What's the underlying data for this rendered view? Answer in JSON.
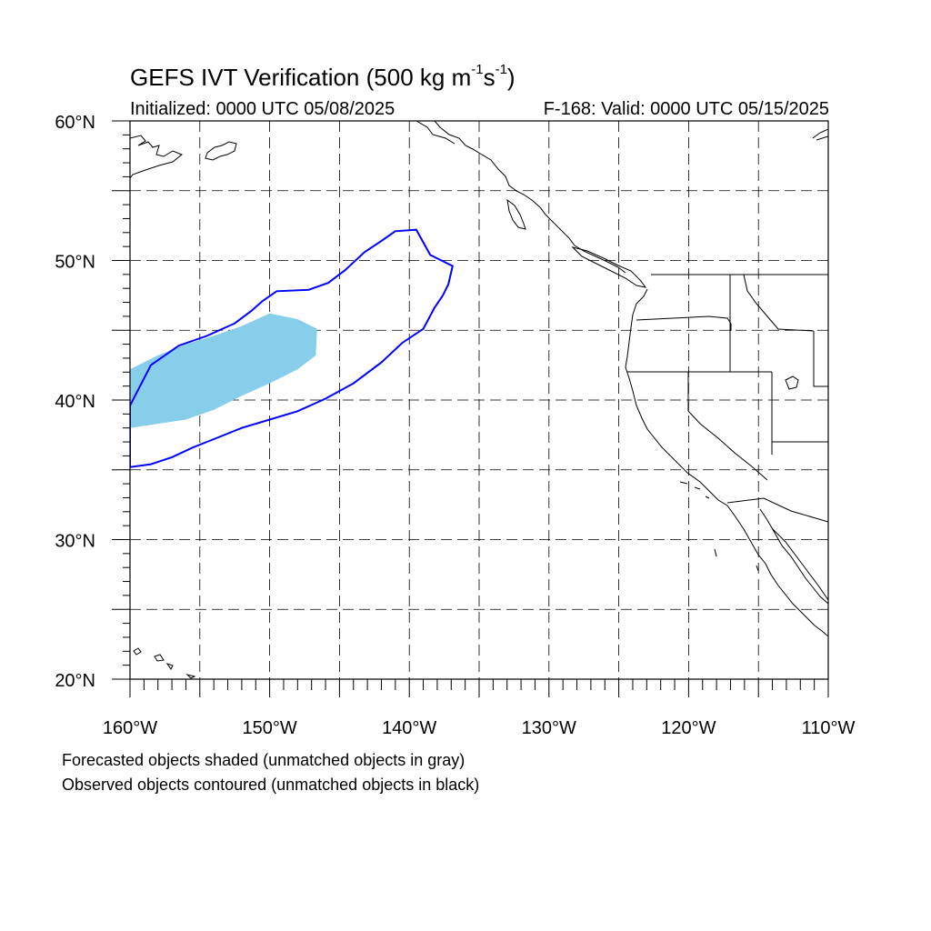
{
  "title": {
    "main": "GEFS IVT Verification (500 kg m",
    "sup1": "-1",
    "mid": "s",
    "sup2": "-1",
    "end": ")"
  },
  "subtitle": {
    "initialized": "Initialized: 0000 UTC 05/08/2025",
    "valid": "F-168: Valid: 0000 UTC 05/15/2025"
  },
  "axes": {
    "lon_range": [
      -160,
      -110
    ],
    "lat_range": [
      20,
      60
    ],
    "lon_ticks": [
      {
        "value": -160,
        "label": "160°W"
      },
      {
        "value": -150,
        "label": "150°W"
      },
      {
        "value": -140,
        "label": "140°W"
      },
      {
        "value": -130,
        "label": "130°W"
      },
      {
        "value": -120,
        "label": "120°W"
      },
      {
        "value": -110,
        "label": "110°W"
      }
    ],
    "lat_ticks": [
      {
        "value": 60,
        "label": "60°N"
      },
      {
        "value": 50,
        "label": "50°N"
      },
      {
        "value": 40,
        "label": "40°N"
      },
      {
        "value": 30,
        "label": "30°N"
      },
      {
        "value": 20,
        "label": "20°N"
      }
    ],
    "grid_lon": [
      -155,
      -150,
      -145,
      -140,
      -135,
      -130,
      -125,
      -120,
      -115
    ],
    "grid_lat": [
      55,
      50,
      45,
      40,
      35,
      30,
      25
    ]
  },
  "colors": {
    "forecast_fill": "#87ceeb",
    "observed_contour": "#0000ff",
    "coastline": "#000000",
    "grid": "#000000"
  },
  "forecast_object": [
    [
      -160,
      38
    ],
    [
      -158,
      38.3
    ],
    [
      -156,
      38.6
    ],
    [
      -154,
      39.3
    ],
    [
      -152,
      40.3
    ],
    [
      -150,
      41.2
    ],
    [
      -148,
      42.2
    ],
    [
      -146.7,
      43.2
    ],
    [
      -146.6,
      45.1
    ],
    [
      -148,
      45.8
    ],
    [
      -150,
      46.2
    ],
    [
      -152,
      45.3
    ],
    [
      -154,
      44.6
    ],
    [
      -156,
      44.0
    ],
    [
      -158,
      43.2
    ],
    [
      -160,
      42.2
    ]
  ],
  "observed_object": [
    [
      -160,
      35.2
    ],
    [
      -158.5,
      35.4
    ],
    [
      -157,
      35.9
    ],
    [
      -155.5,
      36.6
    ],
    [
      -154,
      37.2
    ],
    [
      -152,
      38.0
    ],
    [
      -150,
      38.6
    ],
    [
      -148,
      39.2
    ],
    [
      -146,
      40.1
    ],
    [
      -144,
      41.2
    ],
    [
      -142,
      42.7
    ],
    [
      -140.5,
      44.1
    ],
    [
      -139,
      45.1
    ],
    [
      -138.2,
      46.6
    ],
    [
      -137.6,
      47.5
    ],
    [
      -137.2,
      48.3
    ],
    [
      -136.9,
      49.6
    ],
    [
      -138.5,
      50.4
    ],
    [
      -139.5,
      52.2
    ],
    [
      -141,
      52.1
    ],
    [
      -142,
      51.4
    ],
    [
      -143.2,
      50.6
    ],
    [
      -144.6,
      49.3
    ],
    [
      -145.8,
      48.4
    ],
    [
      -147.2,
      47.9
    ],
    [
      -149.5,
      47.8
    ],
    [
      -150.5,
      47.1
    ],
    [
      -151.3,
      46.4
    ],
    [
      -152.5,
      45.5
    ],
    [
      -154.5,
      44.6
    ],
    [
      -156.5,
      43.9
    ],
    [
      -158.5,
      42.5
    ],
    [
      -160,
      39.6
    ]
  ],
  "legend": {
    "forecast_note": "Forecasted objects shaded (unmatched objects in gray)",
    "observed_note": "Observed objects contoured (unmatched objects in black)"
  }
}
